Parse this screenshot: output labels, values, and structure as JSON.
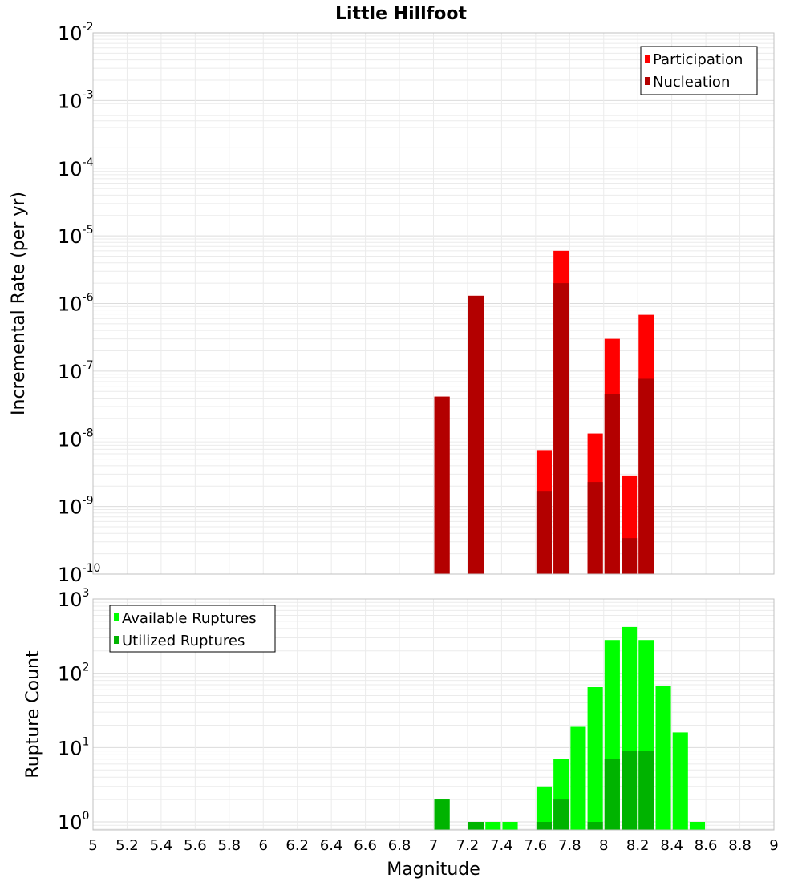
{
  "title": "Little Hillfoot",
  "colors": {
    "participation": "#ff0000",
    "nucleation": "#b30000",
    "available": "#00ff00",
    "utilized": "#00b300",
    "grid": "#ebebeb",
    "frame": "#c0c0c0"
  },
  "x_axis": {
    "label": "Magnitude",
    "range": [
      5,
      9
    ],
    "ticks": [
      "5",
      "5.2",
      "5.4",
      "5.6",
      "5.8",
      "6",
      "6.2",
      "6.4",
      "6.6",
      "6.8",
      "7",
      "7.2",
      "7.4",
      "7.6",
      "7.8",
      "8",
      "8.2",
      "8.4",
      "8.6",
      "8.8",
      "9"
    ]
  },
  "chart_data": [
    {
      "type": "bar",
      "title": "Little Hillfoot",
      "xlabel": "Magnitude",
      "ylabel": "Incremental Rate (per yr)",
      "log_y": true,
      "xlim": [
        5,
        9
      ],
      "ylim": [
        1e-10,
        0.01
      ],
      "grid": true,
      "legend_position": "top-right",
      "y_ticks": [
        {
          "base": "10",
          "exp": "-10"
        },
        {
          "base": "10",
          "exp": "-9"
        },
        {
          "base": "10",
          "exp": "-8"
        },
        {
          "base": "10",
          "exp": "-7"
        },
        {
          "base": "10",
          "exp": "-6"
        },
        {
          "base": "10",
          "exp": "-5"
        },
        {
          "base": "10",
          "exp": "-4"
        },
        {
          "base": "10",
          "exp": "-3"
        },
        {
          "base": "10",
          "exp": "-2"
        }
      ],
      "series": [
        {
          "name": "Participation",
          "color": "#ff0000",
          "x": [
            7.05,
            7.25,
            7.65,
            7.75,
            7.95,
            8.05,
            8.15,
            8.25
          ],
          "values": [
            4.2e-08,
            1.3e-06,
            6.8e-09,
            6e-06,
            1.2e-08,
            3e-07,
            2.8e-09,
            6.8e-07
          ]
        },
        {
          "name": "Nucleation",
          "color": "#b30000",
          "x": [
            7.05,
            7.25,
            7.65,
            7.75,
            7.95,
            8.05,
            8.15,
            8.25
          ],
          "values": [
            4.2e-08,
            1.3e-06,
            1.7e-09,
            2e-06,
            2.3e-09,
            4.6e-08,
            3.4e-10,
            7.7e-08
          ]
        }
      ]
    },
    {
      "type": "bar",
      "title": "",
      "xlabel": "Magnitude",
      "ylabel": "Rupture Count",
      "log_y": true,
      "xlim": [
        5,
        9
      ],
      "ylim": [
        0.78,
        1000
      ],
      "grid": true,
      "legend_position": "top-left",
      "y_ticks": [
        {
          "base": "10",
          "exp": "0"
        },
        {
          "base": "10",
          "exp": "1"
        },
        {
          "base": "10",
          "exp": "2"
        },
        {
          "base": "10",
          "exp": "3"
        }
      ],
      "series": [
        {
          "name": "Available Ruptures",
          "color": "#00ff00",
          "x": [
            7.05,
            7.25,
            7.35,
            7.45,
            7.65,
            7.75,
            7.85,
            7.95,
            8.05,
            8.15,
            8.25,
            8.35,
            8.45,
            8.55
          ],
          "values": [
            2,
            1,
            1,
            1,
            3,
            7,
            19,
            65,
            280,
            420,
            280,
            67,
            16,
            1
          ]
        },
        {
          "name": "Utilized Ruptures",
          "color": "#00b300",
          "x": [
            7.05,
            7.25,
            7.35,
            7.45,
            7.65,
            7.75,
            7.85,
            7.95,
            8.05,
            8.15,
            8.25,
            8.35,
            8.45,
            8.55
          ],
          "values": [
            2,
            1,
            0,
            0,
            1,
            2,
            0,
            1,
            7,
            9,
            9,
            0,
            0,
            0
          ]
        }
      ]
    }
  ]
}
